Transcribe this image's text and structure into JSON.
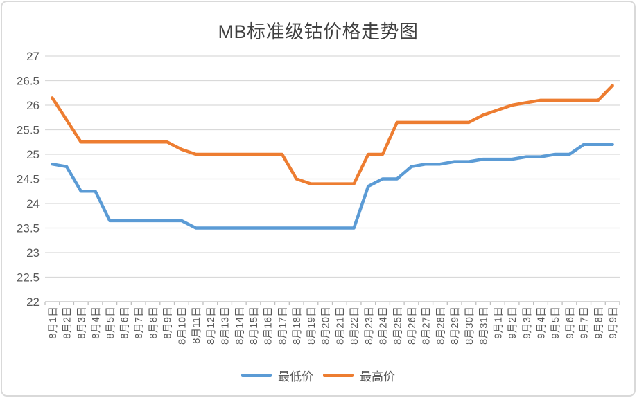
{
  "title": "MB标准级钴价格走势图",
  "legend": {
    "min_label": "最低价",
    "max_label": "最高价"
  },
  "colors": {
    "min_line": "#5B9BD5",
    "max_line": "#ED7D31",
    "gridline": "#D9D9D9",
    "axis_line": "#BFBFBF",
    "axis_text": "#595959",
    "title_text": "#404040",
    "card_border": "#D9D9D9"
  },
  "y_axis": {
    "ticks": [
      "22",
      "22.5",
      "23",
      "23.5",
      "24",
      "24.5",
      "25",
      "25.5",
      "26",
      "26.5",
      "27"
    ]
  },
  "chart_data": {
    "type": "line",
    "title": "MB标准级钴价格走势图",
    "categories": [
      "8月1日",
      "8月2日",
      "8月3日",
      "8月4日",
      "8月5日",
      "8月6日",
      "8月7日",
      "8月8日",
      "8月9日",
      "8月10日",
      "8月11日",
      "8月12日",
      "8月13日",
      "8月14日",
      "8月15日",
      "8月16日",
      "8月17日",
      "8月18日",
      "8月19日",
      "8月20日",
      "8月21日",
      "8月22日",
      "8月23日",
      "8月24日",
      "8月25日",
      "8月26日",
      "8月27日",
      "8月28日",
      "8月29日",
      "8月30日",
      "8月31日",
      "9月1日",
      "9月2日",
      "9月3日",
      "9月4日",
      "9月5日",
      "9月6日",
      "9月7日",
      "9月8日",
      "9月9日"
    ],
    "series": [
      {
        "name": "最低价",
        "color": "#5B9BD5",
        "values": [
          24.8,
          24.75,
          24.25,
          24.25,
          23.65,
          23.65,
          23.65,
          23.65,
          23.65,
          23.65,
          23.5,
          23.5,
          23.5,
          23.5,
          23.5,
          23.5,
          23.5,
          23.5,
          23.5,
          23.5,
          23.5,
          23.5,
          24.35,
          24.5,
          24.5,
          24.75,
          24.8,
          24.8,
          24.85,
          24.85,
          24.9,
          24.9,
          24.9,
          24.95,
          24.95,
          25.0,
          25.0,
          25.2,
          25.2,
          25.2
        ]
      },
      {
        "name": "最高价",
        "color": "#ED7D31",
        "values": [
          26.15,
          25.7,
          25.25,
          25.25,
          25.25,
          25.25,
          25.25,
          25.25,
          25.25,
          25.1,
          25.0,
          25.0,
          25.0,
          25.0,
          25.0,
          25.0,
          25.0,
          24.5,
          24.4,
          24.4,
          24.4,
          24.4,
          25.0,
          25.0,
          25.65,
          25.65,
          25.65,
          25.65,
          25.65,
          25.65,
          25.8,
          25.9,
          26.0,
          26.05,
          26.1,
          26.1,
          26.1,
          26.1,
          26.1,
          26.4
        ]
      }
    ],
    "xlabel": "",
    "ylabel": "",
    "ylim": [
      22,
      27
    ],
    "ytick_step": 0.5,
    "grid": true,
    "legend_position": "bottom"
  }
}
